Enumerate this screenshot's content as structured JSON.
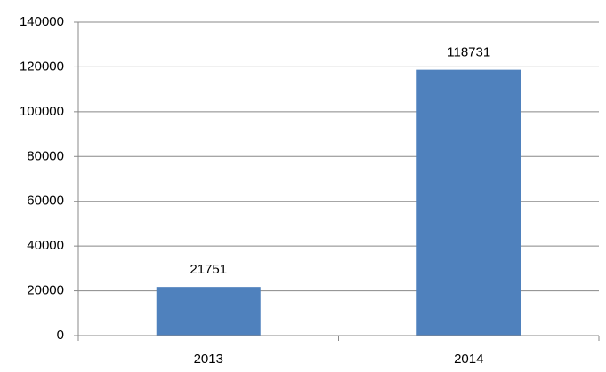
{
  "chart_data": {
    "type": "bar",
    "categories": [
      "2013",
      "2014"
    ],
    "values": [
      21751,
      118731
    ],
    "color": "#4f81bd",
    "ylim": [
      0,
      140000
    ],
    "yticks": [
      0,
      20000,
      40000,
      60000,
      80000,
      100000,
      120000,
      140000
    ],
    "grid": true
  }
}
